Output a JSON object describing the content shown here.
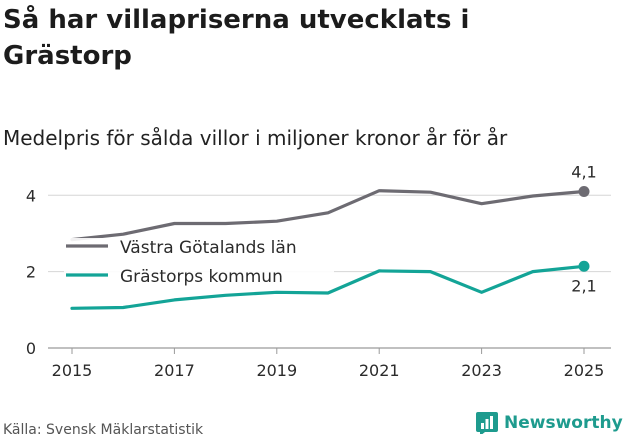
{
  "header": {
    "title": "Så har villapriserna utvecklats i Grästorp",
    "subtitle": "Medelpris för sålda villor i miljoner kronor år för år"
  },
  "footer": {
    "source": "Källa: Svensk Mäklarstatistik",
    "brand": "Newsworthy"
  },
  "colors": {
    "series_region": "#6d6b72",
    "series_municipality": "#13a497",
    "grid": "#d6d6d6",
    "axis_text": "#2b2b2b",
    "brand": "#1e9b8e"
  },
  "chart_data": {
    "type": "line",
    "title": "Så har villapriserna utvecklats i Grästorp",
    "subtitle": "Medelpris för sålda villor i miljoner kronor år för år",
    "xlabel": "",
    "ylabel": "",
    "x": [
      2015,
      2016,
      2017,
      2018,
      2019,
      2020,
      2021,
      2022,
      2023,
      2024,
      2025
    ],
    "x_ticks": [
      "2015",
      "2017",
      "2019",
      "2021",
      "2023",
      "2025"
    ],
    "y_ticks": [
      "0",
      "2",
      "4"
    ],
    "ylim": [
      0,
      4.4
    ],
    "xlim": [
      2015,
      2025
    ],
    "grid": true,
    "legend_position": "inline-left",
    "series": [
      {
        "name": "Västra Götalands län",
        "values": [
          2.84,
          2.98,
          3.26,
          3.26,
          3.32,
          3.54,
          4.12,
          4.08,
          3.78,
          3.98,
          4.1
        ],
        "end_label": "4,1",
        "color_key": "series_region"
      },
      {
        "name": "Grästorps kommun",
        "values": [
          1.04,
          1.06,
          1.26,
          1.38,
          1.46,
          1.44,
          2.02,
          2.0,
          1.46,
          2.0,
          2.14
        ],
        "end_label": "2,1",
        "color_key": "series_municipality"
      }
    ]
  }
}
